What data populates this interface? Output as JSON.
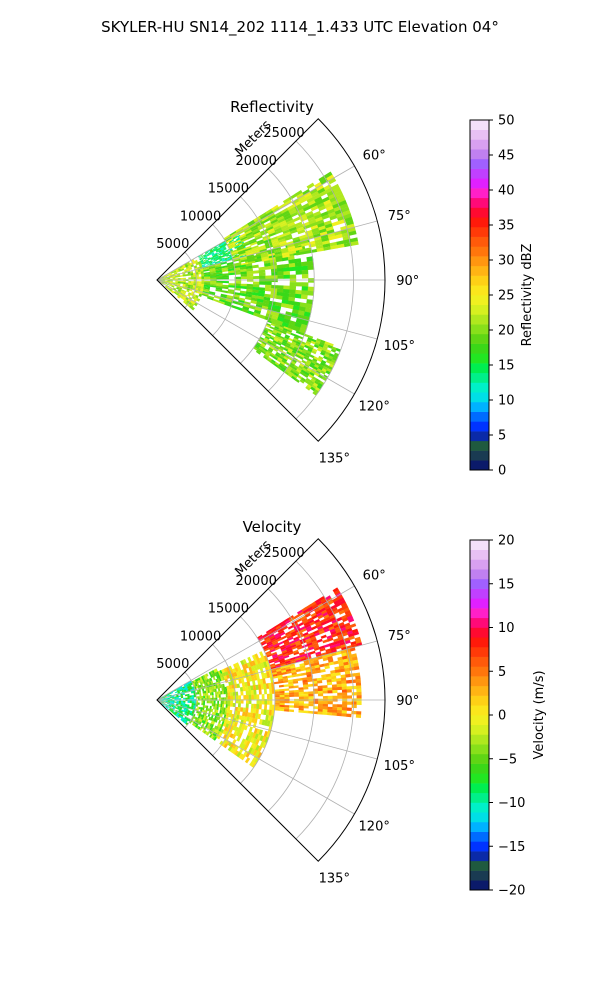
{
  "figure": {
    "title": "SKYLER-HU  SN14_202  1114_1.433 UTC Elevation 04°"
  },
  "chart_data": [
    {
      "type": "heatmap",
      "projection": "polar-sector",
      "title": "Reflectivity",
      "radial_axis_label": "Meters",
      "radial_ticks": [
        5000,
        10000,
        15000,
        20000,
        25000
      ],
      "radial_tick_labels": [
        "5000",
        "10000",
        "15000",
        "20000",
        "25000"
      ],
      "range_max": 29000,
      "azimuth_range": [
        45,
        135
      ],
      "azimuth_ticks": [
        60,
        75,
        90,
        105,
        120,
        135
      ],
      "azimuth_tick_labels": [
        "60°",
        "75°",
        "90°",
        "105°",
        "120°",
        "135°"
      ],
      "grid": true,
      "colorbar": {
        "label": "Reflectivity dBZ",
        "range": [
          0,
          50
        ],
        "ticks": [
          "0",
          "5",
          "10",
          "15",
          "20",
          "25",
          "30",
          "35",
          "40",
          "45",
          "50"
        ],
        "colors": [
          "#0b1a6a",
          "#1a3b52",
          "#1f5a3f",
          "#0a2aa8",
          "#0033ff",
          "#006cff",
          "#00b2ff",
          "#00dfe6",
          "#00f0c8",
          "#00f08a",
          "#00ee50",
          "#22e622",
          "#3ad818",
          "#5fd614",
          "#88e01a",
          "#b0e81e",
          "#d6f020",
          "#f0f020",
          "#fbe61c",
          "#fed016",
          "#ffb414",
          "#ff9610",
          "#ff760c",
          "#ff5a0a",
          "#ff3a08",
          "#ff1a0a",
          "#ff0a30",
          "#ff0a78",
          "#ff20c8",
          "#e020ff",
          "#c040ff",
          "#a060ff",
          "#c080f0",
          "#d8a0f0",
          "#e8c0f4",
          "#f4e0fa"
        ]
      },
      "gates_summary": [
        {
          "range": [
            0,
            6000
          ],
          "azimuth": [
            60,
            130
          ],
          "value": 22
        },
        {
          "range": [
            6000,
            12000
          ],
          "azimuth": [
            60,
            75
          ],
          "value": 14
        },
        {
          "range": [
            6000,
            20000
          ],
          "azimuth": [
            75,
            110
          ],
          "value": 19
        },
        {
          "range": [
            10000,
            26000
          ],
          "azimuth": [
            58,
            80
          ],
          "value": 21
        },
        {
          "range": [
            15000,
            25000
          ],
          "azimuth": [
            110,
            126
          ],
          "value": 20
        }
      ]
    },
    {
      "type": "heatmap",
      "projection": "polar-sector",
      "title": "Velocity",
      "radial_axis_label": "Meters",
      "radial_ticks": [
        5000,
        10000,
        15000,
        20000,
        25000
      ],
      "radial_tick_labels": [
        "5000",
        "10000",
        "15000",
        "20000",
        "25000"
      ],
      "range_max": 29000,
      "azimuth_range": [
        45,
        135
      ],
      "azimuth_ticks": [
        60,
        75,
        90,
        105,
        120,
        135
      ],
      "azimuth_tick_labels": [
        "60°",
        "75°",
        "90°",
        "105°",
        "120°",
        "135°"
      ],
      "grid": true,
      "colorbar": {
        "label": "Velocity (m/s)",
        "range": [
          -20,
          20
        ],
        "ticks": [
          "−20",
          "−15",
          "−10",
          "−5",
          "0",
          "5",
          "10",
          "15",
          "20"
        ],
        "colors": [
          "#0b1a6a",
          "#1a3b52",
          "#1f5a3f",
          "#0a2aa8",
          "#0033ff",
          "#006cff",
          "#00b2ff",
          "#00dfe6",
          "#00f0c8",
          "#00f08a",
          "#00ee50",
          "#22e622",
          "#3ad818",
          "#5fd614",
          "#88e01a",
          "#b0e81e",
          "#d6f020",
          "#f0f020",
          "#fbe61c",
          "#fed016",
          "#ffb414",
          "#ff9610",
          "#ff760c",
          "#ff5a0a",
          "#ff3a08",
          "#ff1a0a",
          "#ff0a30",
          "#ff0a78",
          "#ff20c8",
          "#e020ff",
          "#c040ff",
          "#a060ff",
          "#c080f0",
          "#d8a0f0",
          "#e8c0f4",
          "#f4e0fa"
        ]
      },
      "gates_summary": [
        {
          "range": [
            0,
            5000
          ],
          "azimuth": [
            60,
            130
          ],
          "value": -9
        },
        {
          "range": [
            5000,
            9000
          ],
          "azimuth": [
            62,
            125
          ],
          "value": -4
        },
        {
          "range": [
            9000,
            15000
          ],
          "azimuth": [
            65,
            125
          ],
          "value": 0
        },
        {
          "range": [
            15000,
            27000
          ],
          "azimuth": [
            58,
            75
          ],
          "value": 8
        },
        {
          "range": [
            15000,
            26000
          ],
          "azimuth": [
            75,
            95
          ],
          "value": 3
        }
      ]
    }
  ]
}
